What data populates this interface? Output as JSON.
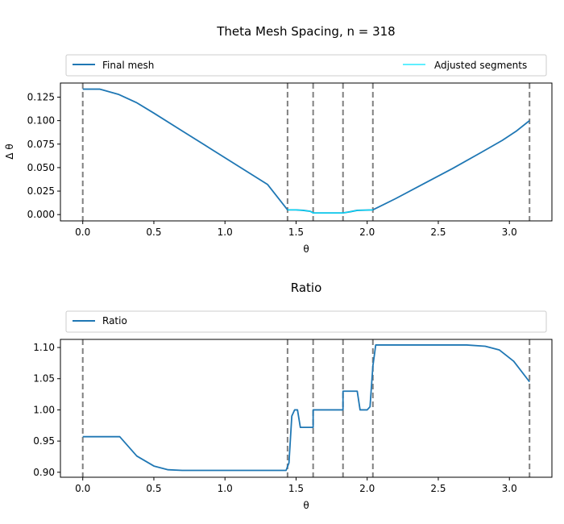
{
  "chart_data": [
    {
      "type": "line",
      "title": "Theta Mesh Spacing, n = 318",
      "xlabel": "θ",
      "ylabel": "Δ θ",
      "xlim": [
        -0.157,
        3.299
      ],
      "ylim": [
        -0.0067,
        0.14
      ],
      "xticks": [
        "0.0",
        "0.5",
        "1.0",
        "1.5",
        "2.0",
        "2.5",
        "3.0"
      ],
      "yticks": [
        "0.000",
        "0.025",
        "0.050",
        "0.075",
        "0.100",
        "0.125"
      ],
      "legend": {
        "placement": "top, above axes",
        "entries": [
          "Final mesh",
          "Adjusted segments"
        ]
      },
      "vlines": [
        0.0,
        1.44,
        1.62,
        1.83,
        2.04,
        3.1416
      ],
      "series": [
        {
          "name": "Final mesh",
          "color": "#1f77b4",
          "points": [
            [
              0.0,
              0.1335
            ],
            [
              0.12,
              0.1335
            ],
            [
              0.25,
              0.128
            ],
            [
              0.38,
              0.119
            ],
            [
              0.5,
              0.108
            ],
            [
              0.7,
              0.089
            ],
            [
              0.9,
              0.07
            ],
            [
              1.1,
              0.051
            ],
            [
              1.3,
              0.032
            ],
            [
              1.44,
              0.005
            ],
            [
              1.5,
              0.005
            ],
            [
              1.55,
              0.0045
            ],
            [
              1.6,
              0.0035
            ],
            [
              1.62,
              0.0018
            ],
            [
              1.7,
              0.0018
            ],
            [
              1.83,
              0.0018
            ],
            [
              1.88,
              0.003
            ],
            [
              1.93,
              0.0045
            ],
            [
              2.04,
              0.005
            ],
            [
              2.2,
              0.017
            ],
            [
              2.4,
              0.033
            ],
            [
              2.6,
              0.049
            ],
            [
              2.8,
              0.066
            ],
            [
              2.95,
              0.079
            ],
            [
              3.05,
              0.089
            ],
            [
              3.1416,
              0.1
            ]
          ]
        },
        {
          "name": "Adjusted segments",
          "color": "#00e5ff",
          "points": [
            [
              1.44,
              0.005
            ],
            [
              1.5,
              0.005
            ],
            [
              1.55,
              0.0045
            ],
            [
              1.6,
              0.0035
            ],
            [
              1.62,
              0.0018
            ],
            [
              1.83,
              0.0018
            ],
            [
              1.88,
              0.003
            ],
            [
              1.93,
              0.0045
            ],
            [
              2.04,
              0.005
            ]
          ]
        }
      ]
    },
    {
      "type": "line",
      "title": "Ratio",
      "xlabel": "θ",
      "ylabel": "",
      "xlim": [
        -0.157,
        3.299
      ],
      "ylim": [
        0.892,
        1.113
      ],
      "xticks": [
        "0.0",
        "0.5",
        "1.0",
        "1.5",
        "2.0",
        "2.5",
        "3.0"
      ],
      "yticks": [
        "0.90",
        "0.95",
        "1.00",
        "1.05",
        "1.10"
      ],
      "legend": {
        "placement": "top, above axes",
        "entries": [
          "Ratio"
        ]
      },
      "vlines": [
        0.0,
        1.44,
        1.62,
        1.83,
        2.04,
        3.1416
      ],
      "series": [
        {
          "name": "Ratio",
          "color": "#1f77b4",
          "points": [
            [
              0.0,
              0.957
            ],
            [
              0.26,
              0.957
            ],
            [
              0.38,
              0.926
            ],
            [
              0.5,
              0.91
            ],
            [
              0.6,
              0.904
            ],
            [
              0.7,
              0.903
            ],
            [
              1.0,
              0.903
            ],
            [
              1.3,
              0.903
            ],
            [
              1.43,
              0.903
            ],
            [
              1.45,
              0.915
            ],
            [
              1.47,
              0.99
            ],
            [
              1.49,
              1.0
            ],
            [
              1.51,
              1.0
            ],
            [
              1.53,
              0.972
            ],
            [
              1.57,
              0.972
            ],
            [
              1.62,
              0.972
            ],
            [
              1.62,
              1.0
            ],
            [
              1.83,
              1.0
            ],
            [
              1.83,
              1.03
            ],
            [
              1.93,
              1.03
            ],
            [
              1.95,
              1.0
            ],
            [
              2.0,
              1.0
            ],
            [
              2.02,
              1.005
            ],
            [
              2.04,
              1.07
            ],
            [
              2.06,
              1.104
            ],
            [
              2.5,
              1.104
            ],
            [
              2.7,
              1.104
            ],
            [
              2.83,
              1.102
            ],
            [
              2.93,
              1.096
            ],
            [
              3.03,
              1.078
            ],
            [
              3.1416,
              1.045
            ]
          ]
        }
      ]
    }
  ]
}
